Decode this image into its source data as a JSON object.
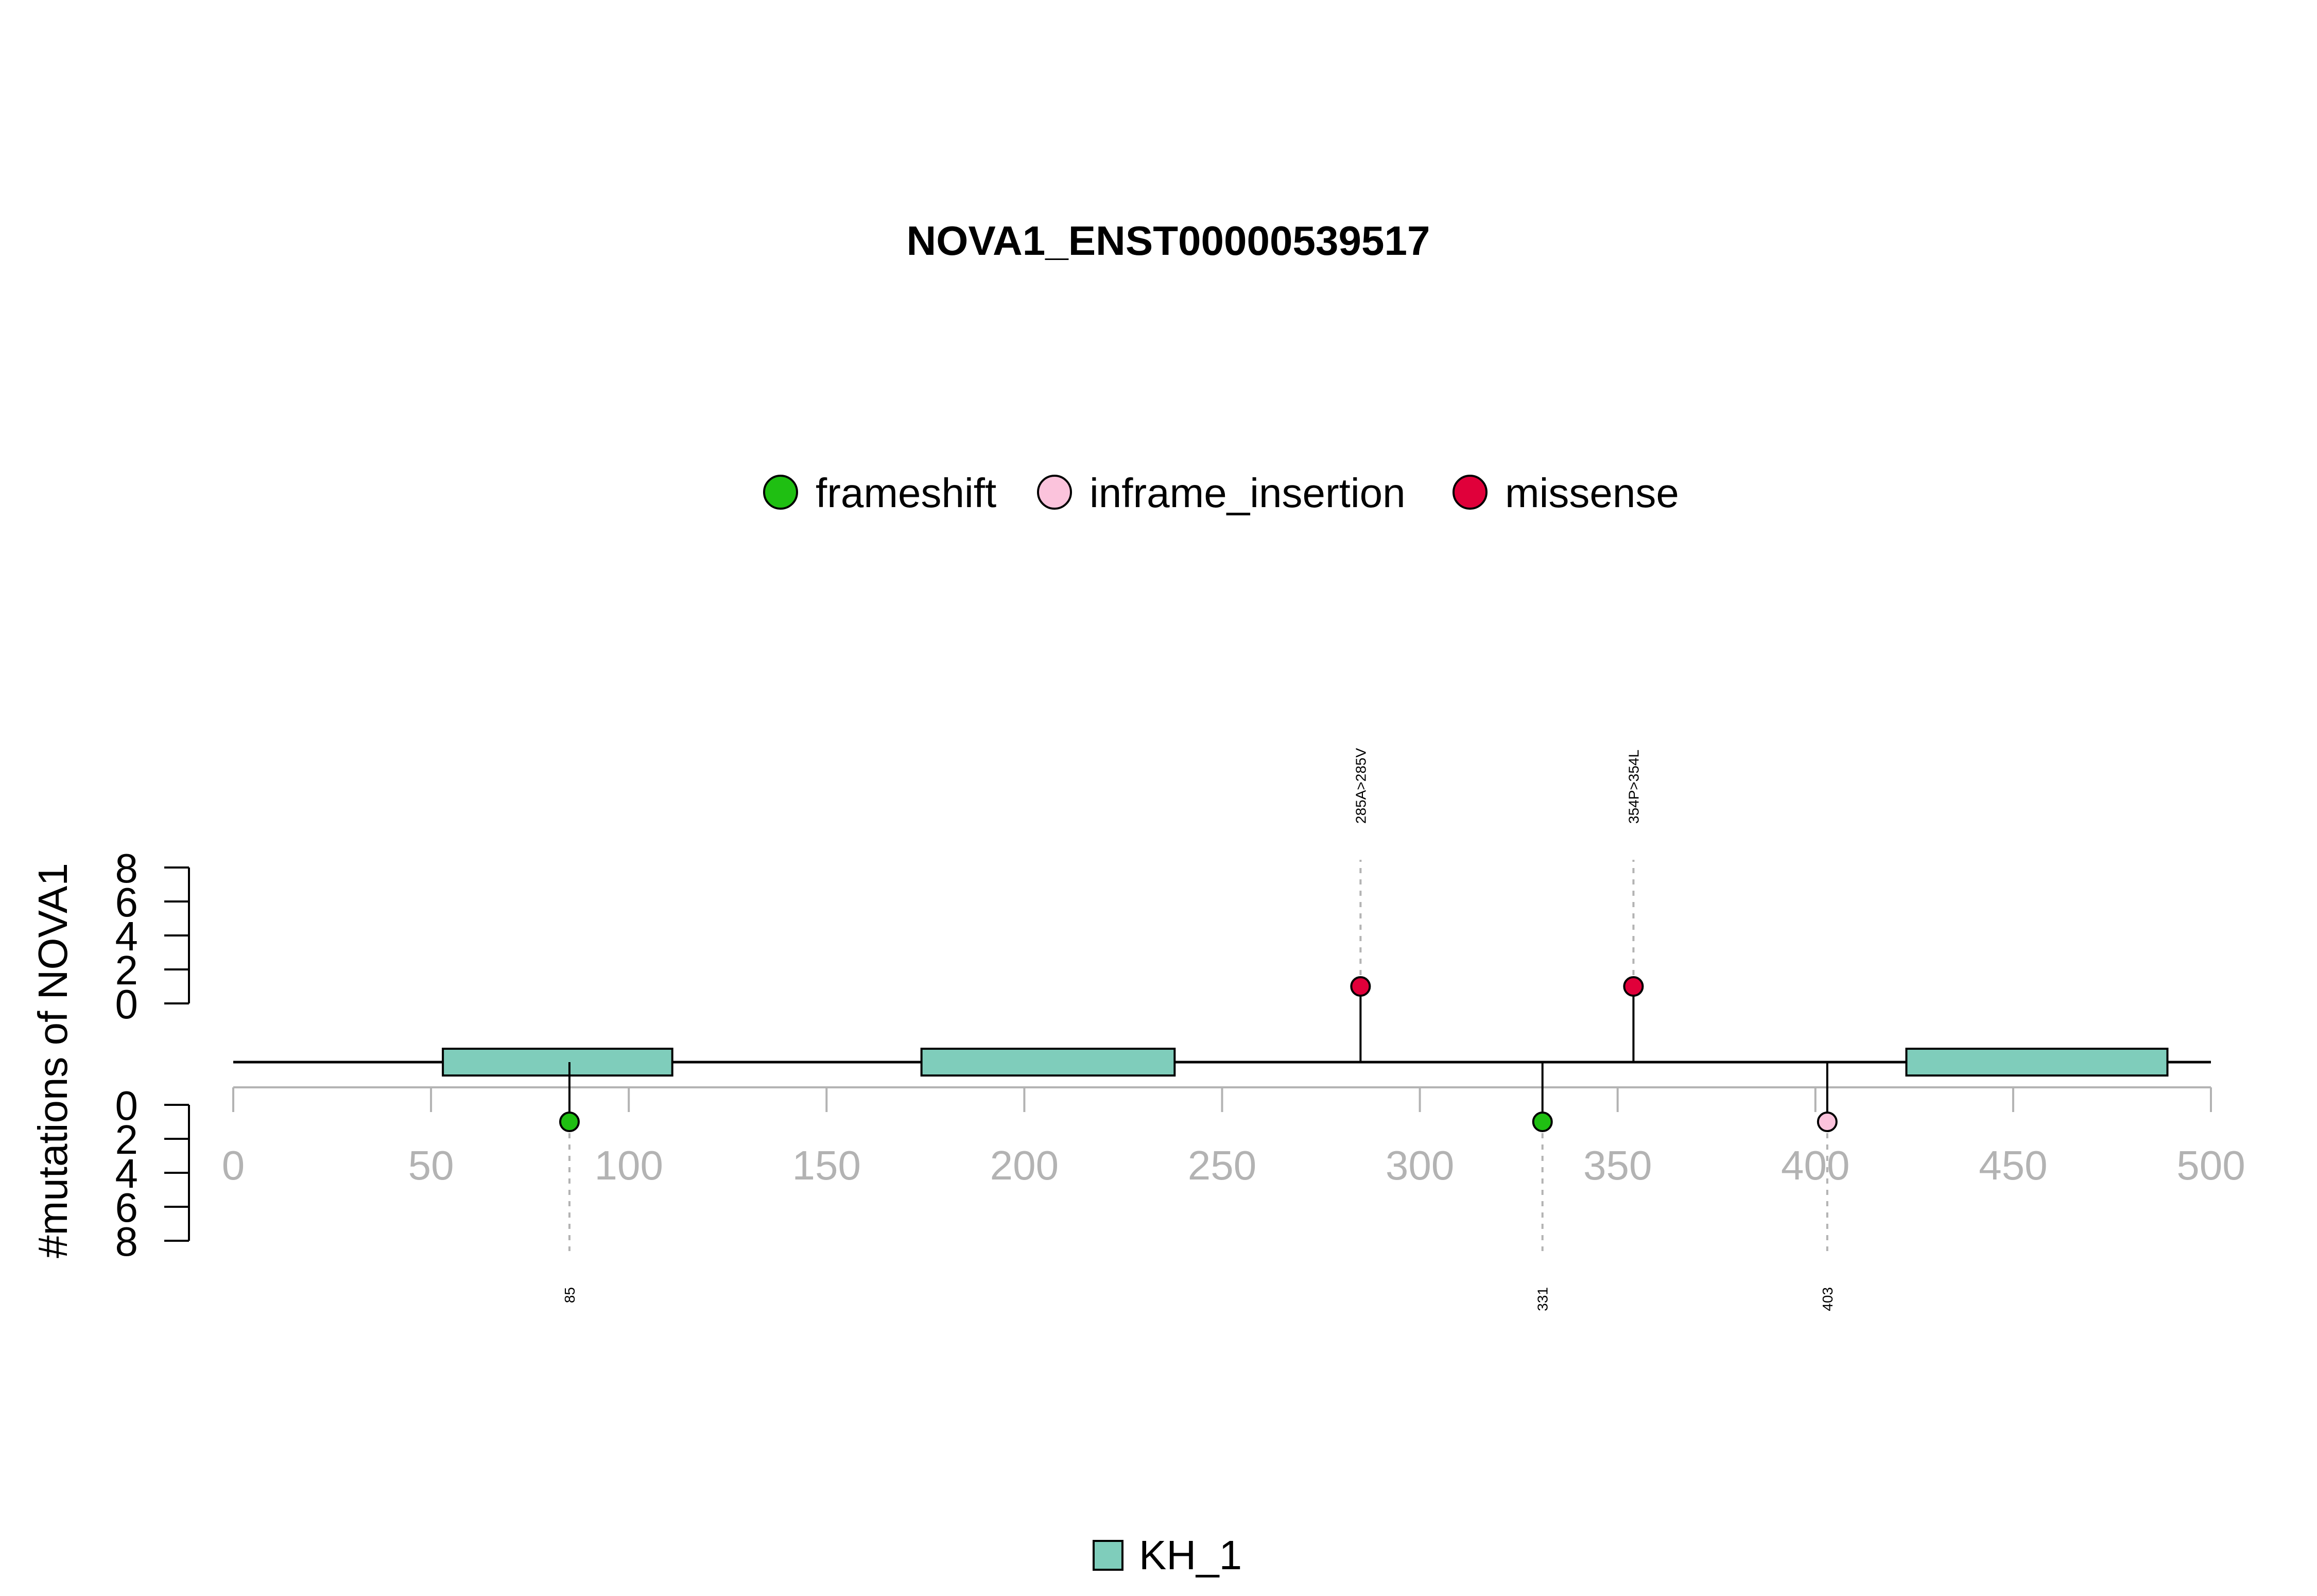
{
  "chart_data": {
    "type": "lollipop",
    "title": "NOVA1_ENST00000539517",
    "ylabel": "#mutations of NOVA1",
    "xlim": [
      0,
      500
    ],
    "x_ticks": [
      0,
      50,
      100,
      150,
      200,
      250,
      300,
      350,
      400,
      450,
      500
    ],
    "y_ticks": [
      0,
      2,
      4,
      6,
      8
    ],
    "mutation_legend": [
      {
        "name": "frameshift",
        "color": "#1fbf12"
      },
      {
        "name": "inframe_insertion",
        "color": "#fbc3dc"
      },
      {
        "name": "missense",
        "color": "#e0003a"
      }
    ],
    "domain_legend": [
      {
        "name": "KH_1",
        "color": "#7fcdbb"
      }
    ],
    "domains": [
      {
        "name": "KH_1",
        "start": 53,
        "end": 111
      },
      {
        "name": "KH_1",
        "start": 174,
        "end": 238
      },
      {
        "name": "KH_1",
        "start": 423,
        "end": 489
      }
    ],
    "mutations": [
      {
        "position": 85,
        "label": "85",
        "type": "frameshift",
        "strand": "bottom",
        "count": 1
      },
      {
        "position": 285,
        "label": "285A>285V",
        "type": "missense",
        "strand": "top",
        "count": 1
      },
      {
        "position": 331,
        "label": "331",
        "type": "frameshift",
        "strand": "bottom",
        "count": 1
      },
      {
        "position": 354,
        "label": "354P>354L",
        "type": "missense",
        "strand": "top",
        "count": 1
      },
      {
        "position": 403,
        "label": "403",
        "type": "inframe_insertion",
        "strand": "bottom",
        "count": 1
      }
    ]
  }
}
